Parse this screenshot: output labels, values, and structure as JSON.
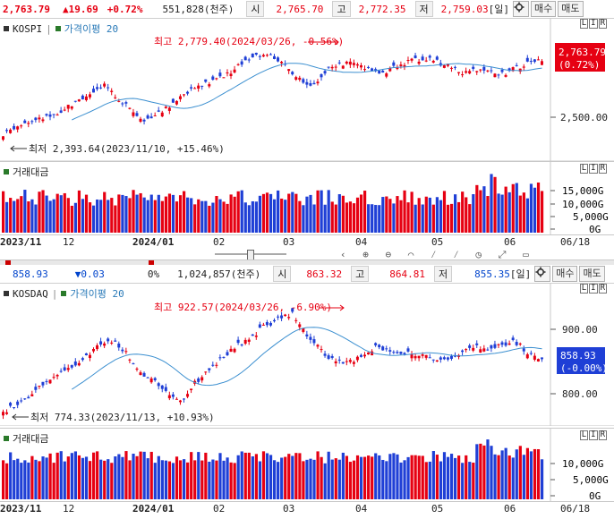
{
  "top": {
    "price": "2,763.79",
    "change": "▲19.69",
    "pct": "+0.72%",
    "volume": "551,828(천주)",
    "open_label": "시",
    "open": "2,765.70",
    "high_label": "고",
    "high": "2,772.35",
    "low_label": "저",
    "low": "2,759.03",
    "period": "[일]",
    "buy": "매수",
    "sell": "매도",
    "name": "KOSPI",
    "indicator": "가격이평 20",
    "current_box": "2,763.79",
    "current_pct": "(0.72%)",
    "annot_high": "최고 2,779.40(2024/03/26, -0.56%)",
    "annot_low": "최저 2,393.64(2023/11/10, +15.46%)",
    "y_label": "2,500.00",
    "volume_title": "거래대금",
    "vol_ticks": [
      "15,000G",
      "10,000G",
      "5,000G",
      "0G"
    ],
    "x_ticks": [
      "2023/11",
      "12",
      "2024/01",
      "02",
      "03",
      "04",
      "05",
      "06",
      "06/18"
    ]
  },
  "bottom": {
    "price": "858.93",
    "change": "▼0.03",
    "pct": "0%",
    "volume": "1,024,857(천주)",
    "open_label": "시",
    "open": "863.32",
    "high_label": "고",
    "high": "864.81",
    "low_label": "저",
    "low": "855.35",
    "period": "[일]",
    "buy": "매수",
    "sell": "매도",
    "name": "KOSDAQ",
    "indicator": "가격이평 20",
    "current_box": "858.93",
    "current_pct": "(-0.00%)",
    "annot_high": "최고 922.57(2024/03/26, -6.90%)",
    "annot_low": "최저 774.33(2023/11/13, +10.93%)",
    "y_labels": [
      "900.00",
      "800.00"
    ],
    "volume_title": "거래대금",
    "vol_ticks": [
      "10,000G",
      "5,000G",
      "0G"
    ],
    "x_ticks": [
      "2023/11",
      "12",
      "2024/01",
      "02",
      "03",
      "04",
      "05",
      "06",
      "06/18"
    ]
  },
  "corner_labels": [
    "L",
    "I",
    "R"
  ],
  "colors": {
    "up": "#e60012",
    "down": "#1f3fd6",
    "ma": "#3b8fd0",
    "accent_box": "#e60012",
    "kosdaq_box": "#1f3fd6"
  }
}
